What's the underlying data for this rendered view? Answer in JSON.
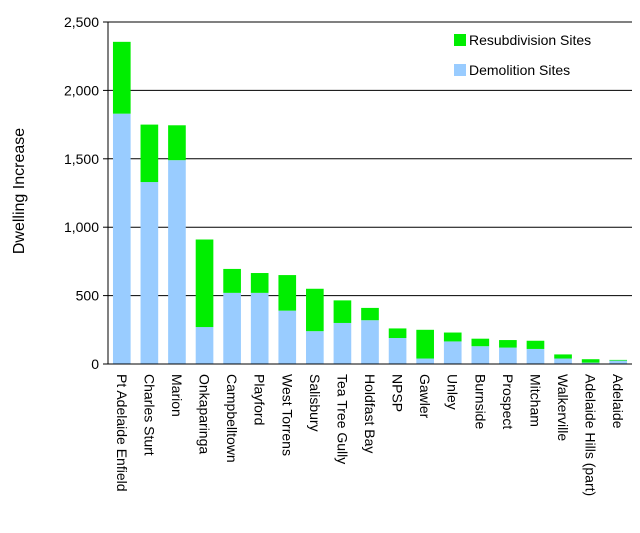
{
  "chart_data": {
    "type": "bar",
    "stacked": true,
    "ylabel": "Dwelling Increase",
    "ylim": [
      0,
      2500
    ],
    "yticks": [
      0,
      500,
      1000,
      1500,
      2000,
      2500
    ],
    "ytick_labels": [
      "0",
      "500",
      "1,000",
      "1,500",
      "2,000",
      "2,500"
    ],
    "grid": true,
    "legend_position": "top-right",
    "categories": [
      "Pt Adelaide Enfield",
      "Charles Sturt",
      "Marion",
      "Onkaparinga",
      "Campbelltown",
      "Playford",
      "West Torrens",
      "Salisbury",
      "Tea Tree Gully",
      "Holdfast Bay",
      "NPSP",
      "Gawler",
      "Unley",
      "Burnside",
      "Prospect",
      "Mitcham",
      "Walkerville",
      "Adelaide Hills (part)",
      "Adelaide"
    ],
    "series": [
      {
        "name": "Demolition Sites",
        "color": "#99ccff",
        "values": [
          1830,
          1330,
          1490,
          270,
          520,
          520,
          390,
          240,
          300,
          320,
          190,
          40,
          165,
          130,
          120,
          110,
          40,
          10,
          25
        ]
      },
      {
        "name": "Resubdivision Sites",
        "color": "#00ee00",
        "values": [
          525,
          420,
          255,
          640,
          175,
          145,
          260,
          310,
          165,
          90,
          70,
          210,
          65,
          55,
          55,
          60,
          30,
          25,
          5
        ]
      }
    ],
    "legend_order": [
      "Resubdivision Sites",
      "Demolition Sites"
    ]
  }
}
